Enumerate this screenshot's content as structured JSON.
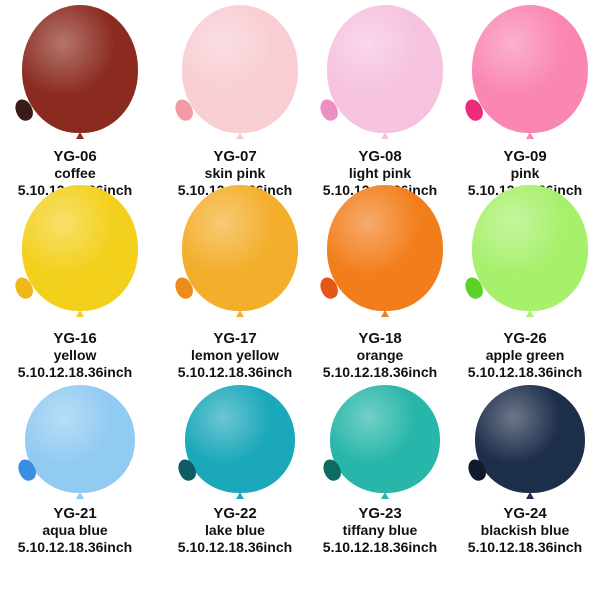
{
  "items": [
    {
      "code": "YG-06",
      "name": "coffee",
      "size": "5.10.12.18.36inch",
      "color": "#8b2b20",
      "mini": "#3a1a14"
    },
    {
      "code": "YG-07",
      "name": "skin pink",
      "size": "5.10.12.18.36inch",
      "color": "#f8cdd3",
      "mini": "#f29aa6"
    },
    {
      "code": "YG-08",
      "name": "light pink",
      "size": "5.10.12.18.36inch",
      "color": "#f6c2de",
      "mini": "#ec8fc2"
    },
    {
      "code": "YG-09",
      "name": "pink",
      "size": "5.10.12.18.36inch",
      "color": "#fa86b3",
      "mini": "#ee2a7a"
    },
    {
      "code": "YG-16",
      "name": "yellow",
      "size": "5.10.12.18.36inch",
      "color": "#f3d01c",
      "mini": "#efb81a"
    },
    {
      "code": "YG-17",
      "name": "lemon yellow",
      "size": "5.10.12.18.36inch",
      "color": "#f3ae2b",
      "mini": "#ee8c1a"
    },
    {
      "code": "YG-18",
      "name": "orange",
      "size": "5.10.12.18.36inch",
      "color": "#f27e1b",
      "mini": "#e4571a"
    },
    {
      "code": "YG-26",
      "name": "apple green",
      "size": "5.10.12.18.36inch",
      "color": "#a7f06c",
      "mini": "#5ad22a"
    },
    {
      "code": "YG-21",
      "name": "aqua blue",
      "size": "5.10.12.18.36inch",
      "color": "#92cbf2",
      "mini": "#3a8de0"
    },
    {
      "code": "YG-22",
      "name": "lake blue",
      "size": "5.10.12.18.36inch",
      "color": "#1ba8ba",
      "mini": "#0e5c66"
    },
    {
      "code": "YG-23",
      "name": "tiffany blue",
      "size": "5.10.12.18.36inch",
      "color": "#27b6a9",
      "mini": "#0f6a62"
    },
    {
      "code": "YG-24",
      "name": "blackish blue",
      "size": "5.10.12.18.36inch",
      "color": "#1d2e4b",
      "mini": "#111a2a"
    }
  ]
}
